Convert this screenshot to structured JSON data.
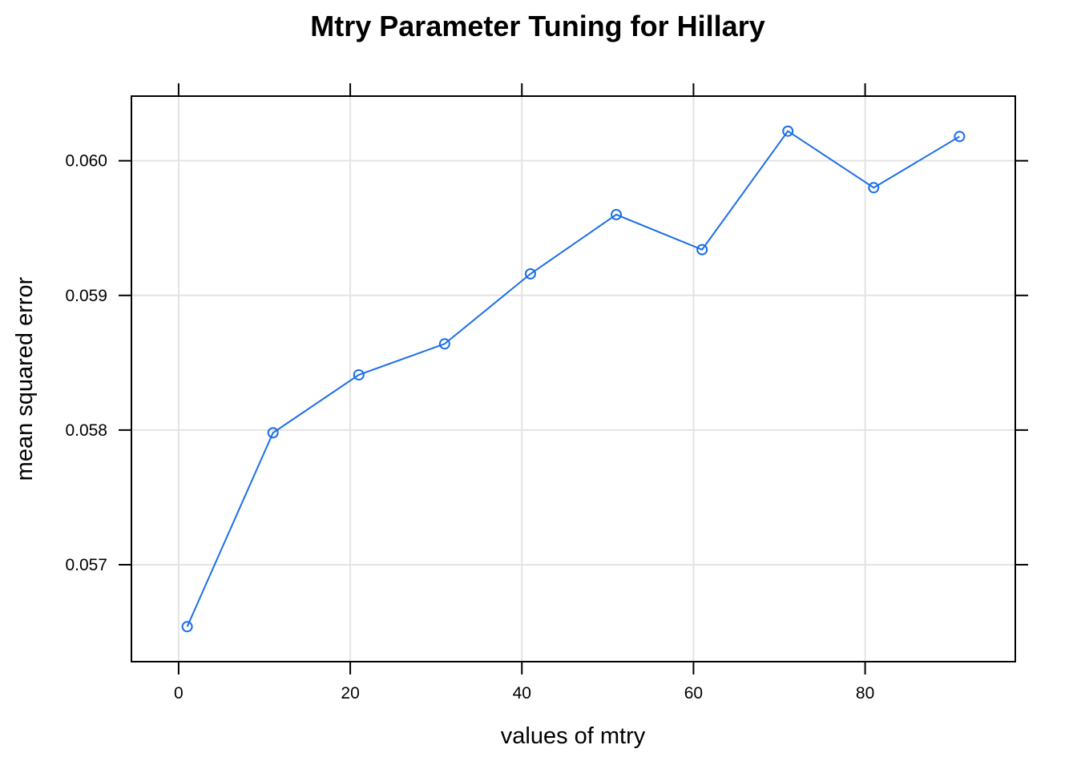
{
  "chart_data": {
    "type": "line",
    "title": "Mtry Parameter Tuning for Hillary",
    "xlabel": "values of mtry",
    "ylabel": "mean squared error",
    "x": [
      1,
      11,
      21,
      31,
      41,
      51,
      61,
      71,
      81,
      91
    ],
    "series": [
      {
        "values": [
          0.05654,
          0.05798,
          0.05841,
          0.05864,
          0.05916,
          0.0596,
          0.05934,
          0.06022,
          0.0598,
          0.06018
        ],
        "color": "#1a6ee8",
        "marker": "open-circle"
      }
    ],
    "xlim": [
      -5.5,
      97.5
    ],
    "ylim": [
      0.05628,
      0.06048
    ],
    "xticks": [
      0,
      20,
      40,
      60,
      80
    ],
    "yticks": [
      0.057,
      0.058,
      0.059,
      0.06
    ],
    "xtick_labels": [
      "0",
      "20",
      "40",
      "60",
      "80"
    ],
    "ytick_labels": [
      "0.057",
      "0.058",
      "0.059",
      "0.060"
    ],
    "grid": true,
    "legend": "none"
  }
}
